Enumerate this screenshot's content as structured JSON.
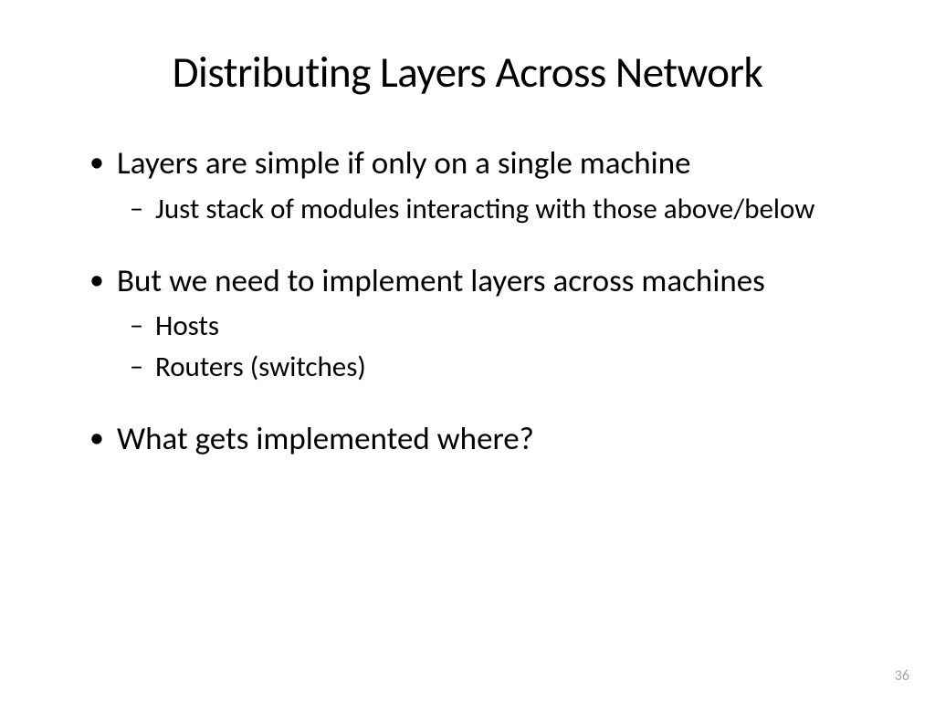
{
  "slide": {
    "title": "Distributing Layers Across Network",
    "bullets": [
      {
        "text": "Layers are simple if only on a single machine",
        "sub": [
          "Just stack of modules interacting with those above/below"
        ]
      },
      {
        "text": "But we need to implement layers across machines",
        "sub": [
          "Hosts",
          "Routers (switches)"
        ]
      },
      {
        "text": "What gets implemented where?",
        "sub": []
      }
    ],
    "page_number": "36"
  },
  "style": {
    "background_color": "#ffffff",
    "text_color": "#000000",
    "page_number_color": "#a6a6a6",
    "title_fontsize": 47,
    "level1_fontsize": 35,
    "level2_fontsize": 31,
    "font_family": "Calibri, Arial, sans-serif"
  }
}
